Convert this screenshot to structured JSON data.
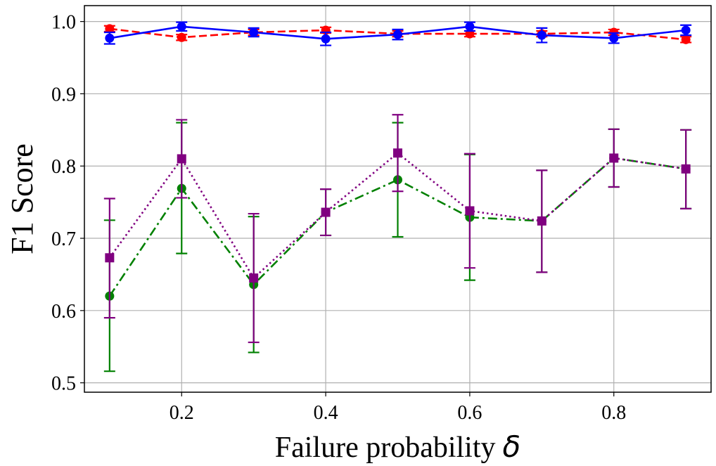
{
  "chart_data": {
    "type": "line",
    "title": "",
    "xlabel": "Failure probability",
    "xlabel_symbol": "δ",
    "ylabel": "F1 Score",
    "xlim": [
      0.065,
      0.935
    ],
    "ylim": [
      0.487,
      1.022
    ],
    "xticks": [
      0.2,
      0.4,
      0.6,
      0.8
    ],
    "xtick_labels": [
      "0.2",
      "0.4",
      "0.6",
      "0.8"
    ],
    "yticks": [
      0.5,
      0.6,
      0.7,
      0.8,
      0.9,
      1.0
    ],
    "ytick_labels": [
      "0.5",
      "0.6",
      "0.7",
      "0.8",
      "0.9",
      "1.0"
    ],
    "grid": true,
    "legend": "none",
    "x": [
      0.1,
      0.2,
      0.3,
      0.4,
      0.5,
      0.6,
      0.7,
      0.8,
      0.9
    ],
    "series": [
      {
        "name": "red-dashed",
        "color": "#ff0000",
        "line_style": "dashed",
        "marker": "circle",
        "values": [
          0.99,
          0.978,
          0.985,
          0.988,
          0.983,
          0.983,
          0.983,
          0.985,
          0.975
        ],
        "error_low": [
          0.986,
          0.974,
          0.981,
          0.984,
          0.979,
          0.979,
          0.979,
          0.981,
          0.971
        ],
        "error_high": [
          0.994,
          0.982,
          0.989,
          0.992,
          0.987,
          0.987,
          0.987,
          0.989,
          0.979
        ]
      },
      {
        "name": "blue-solid",
        "color": "#0000ff",
        "line_style": "solid",
        "marker": "circle",
        "values": [
          0.977,
          0.993,
          0.985,
          0.976,
          0.982,
          0.993,
          0.981,
          0.977,
          0.988
        ],
        "error_low": [
          0.969,
          0.987,
          0.979,
          0.967,
          0.975,
          0.987,
          0.971,
          0.97,
          0.981
        ],
        "error_high": [
          0.985,
          0.999,
          0.991,
          0.985,
          0.989,
          0.999,
          0.991,
          0.984,
          0.995
        ]
      },
      {
        "name": "green-dashdot",
        "color": "#008000",
        "line_style": "dashdot",
        "marker": "circle",
        "values": [
          0.62,
          0.769,
          0.636,
          0.736,
          0.781,
          0.729,
          0.724,
          0.811,
          0.796
        ],
        "error_low": [
          0.516,
          0.679,
          0.542,
          0.704,
          0.702,
          0.642,
          0.653,
          0.771,
          0.741
        ],
        "error_high": [
          0.725,
          0.86,
          0.73,
          0.768,
          0.86,
          0.816,
          0.794,
          0.851,
          0.85
        ]
      },
      {
        "name": "purple-dotted",
        "color": "#800080",
        "line_style": "dotted",
        "marker": "square",
        "values": [
          0.673,
          0.81,
          0.645,
          0.736,
          0.818,
          0.738,
          0.724,
          0.811,
          0.796
        ],
        "error_low": [
          0.59,
          0.756,
          0.556,
          0.704,
          0.765,
          0.659,
          0.653,
          0.771,
          0.741
        ],
        "error_high": [
          0.755,
          0.864,
          0.734,
          0.768,
          0.871,
          0.817,
          0.794,
          0.851,
          0.85
        ]
      }
    ]
  }
}
